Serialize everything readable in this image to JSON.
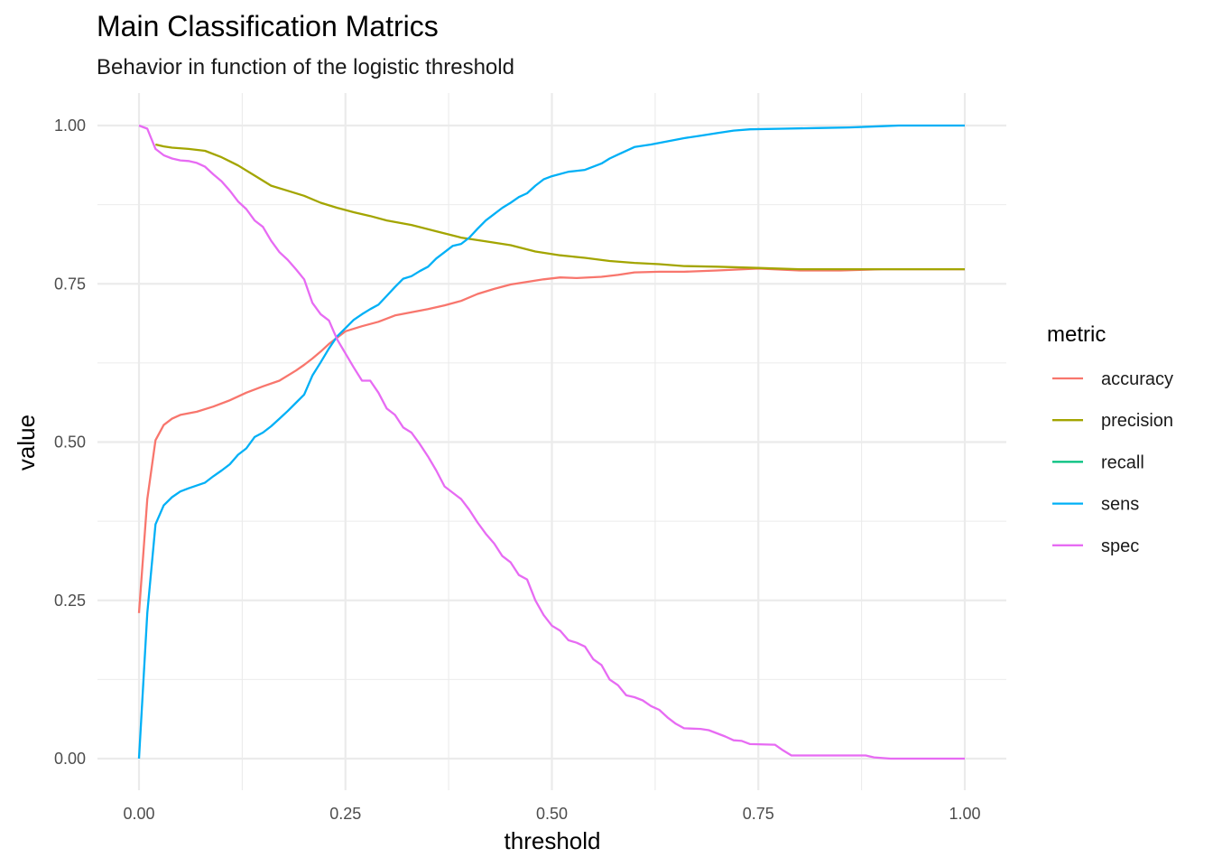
{
  "chart_data": {
    "type": "line",
    "title": "Main Classification Matrics",
    "subtitle": "Behavior in function of the logistic threshold",
    "xlabel": "threshold",
    "ylabel": "value",
    "xlim": [
      0,
      1
    ],
    "ylim": [
      0,
      1
    ],
    "x_ticks": [
      0,
      0.25,
      0.5,
      0.75,
      1
    ],
    "x_tick_labels": [
      "0.00",
      "0.25",
      "0.50",
      "0.75",
      "1.00"
    ],
    "y_ticks": [
      0,
      0.25,
      0.5,
      0.75,
      1
    ],
    "y_tick_labels": [
      "0.00",
      "0.25",
      "0.50",
      "0.75",
      "1.00"
    ],
    "grid": true,
    "legend_title": "metric",
    "legend_position": "right",
    "series": [
      {
        "name": "accuracy",
        "color": "#F8766D",
        "points": [
          [
            0.0,
            0.23
          ],
          [
            0.01,
            0.41
          ],
          [
            0.02,
            0.503
          ],
          [
            0.03,
            0.527
          ],
          [
            0.04,
            0.537
          ],
          [
            0.05,
            0.543
          ],
          [
            0.07,
            0.548
          ],
          [
            0.09,
            0.556
          ],
          [
            0.11,
            0.566
          ],
          [
            0.13,
            0.578
          ],
          [
            0.15,
            0.588
          ],
          [
            0.17,
            0.597
          ],
          [
            0.19,
            0.613
          ],
          [
            0.2,
            0.622
          ],
          [
            0.21,
            0.632
          ],
          [
            0.22,
            0.643
          ],
          [
            0.23,
            0.655
          ],
          [
            0.24,
            0.665
          ],
          [
            0.25,
            0.675
          ],
          [
            0.27,
            0.683
          ],
          [
            0.29,
            0.69
          ],
          [
            0.31,
            0.7
          ],
          [
            0.33,
            0.705
          ],
          [
            0.35,
            0.71
          ],
          [
            0.37,
            0.716
          ],
          [
            0.39,
            0.723
          ],
          [
            0.41,
            0.734
          ],
          [
            0.43,
            0.742
          ],
          [
            0.45,
            0.749
          ],
          [
            0.47,
            0.753
          ],
          [
            0.49,
            0.757
          ],
          [
            0.51,
            0.76
          ],
          [
            0.53,
            0.759
          ],
          [
            0.56,
            0.761
          ],
          [
            0.58,
            0.764
          ],
          [
            0.6,
            0.768
          ],
          [
            0.63,
            0.769
          ],
          [
            0.66,
            0.769
          ],
          [
            0.7,
            0.771
          ],
          [
            0.75,
            0.774
          ],
          [
            0.8,
            0.771
          ],
          [
            0.85,
            0.771
          ],
          [
            0.9,
            0.773
          ],
          [
            1.0,
            0.773
          ]
        ]
      },
      {
        "name": "precision",
        "color": "#A3A500",
        "points": [
          [
            0.02,
            0.97
          ],
          [
            0.03,
            0.967
          ],
          [
            0.04,
            0.965
          ],
          [
            0.06,
            0.963
          ],
          [
            0.08,
            0.96
          ],
          [
            0.1,
            0.95
          ],
          [
            0.12,
            0.937
          ],
          [
            0.14,
            0.921
          ],
          [
            0.16,
            0.905
          ],
          [
            0.18,
            0.897
          ],
          [
            0.2,
            0.889
          ],
          [
            0.22,
            0.878
          ],
          [
            0.24,
            0.87
          ],
          [
            0.26,
            0.863
          ],
          [
            0.28,
            0.857
          ],
          [
            0.3,
            0.85
          ],
          [
            0.33,
            0.843
          ],
          [
            0.36,
            0.833
          ],
          [
            0.39,
            0.823
          ],
          [
            0.42,
            0.817
          ],
          [
            0.45,
            0.811
          ],
          [
            0.48,
            0.801
          ],
          [
            0.51,
            0.795
          ],
          [
            0.54,
            0.791
          ],
          [
            0.57,
            0.786
          ],
          [
            0.6,
            0.783
          ],
          [
            0.63,
            0.781
          ],
          [
            0.66,
            0.778
          ],
          [
            0.7,
            0.777
          ],
          [
            0.75,
            0.775
          ],
          [
            0.8,
            0.773
          ],
          [
            0.9,
            0.773
          ],
          [
            1.0,
            0.773
          ]
        ]
      },
      {
        "name": "recall",
        "color": "#00BF7D",
        "points": []
      },
      {
        "name": "sens",
        "color": "#00B0F6",
        "points": [
          [
            0.0,
            0.0
          ],
          [
            0.01,
            0.23
          ],
          [
            0.02,
            0.37
          ],
          [
            0.03,
            0.4
          ],
          [
            0.04,
            0.413
          ],
          [
            0.05,
            0.422
          ],
          [
            0.06,
            0.427
          ],
          [
            0.08,
            0.436
          ],
          [
            0.09,
            0.446
          ],
          [
            0.1,
            0.455
          ],
          [
            0.11,
            0.465
          ],
          [
            0.12,
            0.48
          ],
          [
            0.13,
            0.49
          ],
          [
            0.14,
            0.508
          ],
          [
            0.15,
            0.515
          ],
          [
            0.16,
            0.525
          ],
          [
            0.17,
            0.537
          ],
          [
            0.18,
            0.549
          ],
          [
            0.19,
            0.562
          ],
          [
            0.2,
            0.575
          ],
          [
            0.21,
            0.605
          ],
          [
            0.22,
            0.626
          ],
          [
            0.23,
            0.648
          ],
          [
            0.24,
            0.667
          ],
          [
            0.25,
            0.68
          ],
          [
            0.26,
            0.693
          ],
          [
            0.27,
            0.702
          ],
          [
            0.28,
            0.71
          ],
          [
            0.29,
            0.717
          ],
          [
            0.3,
            0.731
          ],
          [
            0.31,
            0.745
          ],
          [
            0.32,
            0.758
          ],
          [
            0.33,
            0.762
          ],
          [
            0.34,
            0.77
          ],
          [
            0.35,
            0.777
          ],
          [
            0.36,
            0.79
          ],
          [
            0.37,
            0.8
          ],
          [
            0.38,
            0.81
          ],
          [
            0.39,
            0.813
          ],
          [
            0.4,
            0.823
          ],
          [
            0.41,
            0.837
          ],
          [
            0.42,
            0.85
          ],
          [
            0.43,
            0.86
          ],
          [
            0.44,
            0.87
          ],
          [
            0.45,
            0.878
          ],
          [
            0.46,
            0.887
          ],
          [
            0.47,
            0.893
          ],
          [
            0.48,
            0.905
          ],
          [
            0.49,
            0.915
          ],
          [
            0.5,
            0.92
          ],
          [
            0.52,
            0.927
          ],
          [
            0.54,
            0.93
          ],
          [
            0.56,
            0.94
          ],
          [
            0.57,
            0.948
          ],
          [
            0.58,
            0.954
          ],
          [
            0.6,
            0.966
          ],
          [
            0.62,
            0.97
          ],
          [
            0.64,
            0.975
          ],
          [
            0.66,
            0.98
          ],
          [
            0.68,
            0.984
          ],
          [
            0.7,
            0.988
          ],
          [
            0.72,
            0.992
          ],
          [
            0.74,
            0.994
          ],
          [
            0.78,
            0.995
          ],
          [
            0.82,
            0.996
          ],
          [
            0.86,
            0.997
          ],
          [
            0.9,
            0.999
          ],
          [
            0.92,
            1.0
          ],
          [
            1.0,
            1.0
          ]
        ]
      },
      {
        "name": "spec",
        "color": "#E76BF3",
        "points": [
          [
            0.0,
            1.0
          ],
          [
            0.01,
            0.995
          ],
          [
            0.02,
            0.963
          ],
          [
            0.03,
            0.953
          ],
          [
            0.04,
            0.948
          ],
          [
            0.05,
            0.945
          ],
          [
            0.06,
            0.944
          ],
          [
            0.07,
            0.941
          ],
          [
            0.08,
            0.935
          ],
          [
            0.09,
            0.923
          ],
          [
            0.1,
            0.912
          ],
          [
            0.11,
            0.897
          ],
          [
            0.12,
            0.88
          ],
          [
            0.13,
            0.868
          ],
          [
            0.14,
            0.85
          ],
          [
            0.15,
            0.84
          ],
          [
            0.16,
            0.818
          ],
          [
            0.17,
            0.8
          ],
          [
            0.18,
            0.788
          ],
          [
            0.19,
            0.773
          ],
          [
            0.2,
            0.757
          ],
          [
            0.21,
            0.72
          ],
          [
            0.22,
            0.702
          ],
          [
            0.23,
            0.692
          ],
          [
            0.24,
            0.662
          ],
          [
            0.25,
            0.64
          ],
          [
            0.26,
            0.618
          ],
          [
            0.27,
            0.597
          ],
          [
            0.28,
            0.597
          ],
          [
            0.29,
            0.578
          ],
          [
            0.3,
            0.553
          ],
          [
            0.31,
            0.543
          ],
          [
            0.32,
            0.523
          ],
          [
            0.33,
            0.515
          ],
          [
            0.34,
            0.497
          ],
          [
            0.35,
            0.477
          ],
          [
            0.36,
            0.455
          ],
          [
            0.37,
            0.43
          ],
          [
            0.38,
            0.42
          ],
          [
            0.39,
            0.41
          ],
          [
            0.4,
            0.393
          ],
          [
            0.41,
            0.373
          ],
          [
            0.42,
            0.355
          ],
          [
            0.43,
            0.34
          ],
          [
            0.44,
            0.32
          ],
          [
            0.45,
            0.31
          ],
          [
            0.46,
            0.29
          ],
          [
            0.47,
            0.283
          ],
          [
            0.48,
            0.25
          ],
          [
            0.49,
            0.227
          ],
          [
            0.5,
            0.21
          ],
          [
            0.51,
            0.202
          ],
          [
            0.52,
            0.187
          ],
          [
            0.53,
            0.183
          ],
          [
            0.54,
            0.177
          ],
          [
            0.55,
            0.157
          ],
          [
            0.56,
            0.148
          ],
          [
            0.57,
            0.125
          ],
          [
            0.58,
            0.116
          ],
          [
            0.59,
            0.1
          ],
          [
            0.6,
            0.097
          ],
          [
            0.61,
            0.092
          ],
          [
            0.62,
            0.083
          ],
          [
            0.63,
            0.077
          ],
          [
            0.64,
            0.065
          ],
          [
            0.65,
            0.055
          ],
          [
            0.66,
            0.048
          ],
          [
            0.68,
            0.047
          ],
          [
            0.69,
            0.045
          ],
          [
            0.7,
            0.04
          ],
          [
            0.71,
            0.035
          ],
          [
            0.72,
            0.029
          ],
          [
            0.73,
            0.028
          ],
          [
            0.74,
            0.023
          ],
          [
            0.77,
            0.022
          ],
          [
            0.78,
            0.013
          ],
          [
            0.79,
            0.005
          ],
          [
            0.85,
            0.005
          ],
          [
            0.88,
            0.005
          ],
          [
            0.89,
            0.002
          ],
          [
            0.91,
            0.0
          ],
          [
            1.0,
            0.0
          ]
        ]
      }
    ]
  }
}
